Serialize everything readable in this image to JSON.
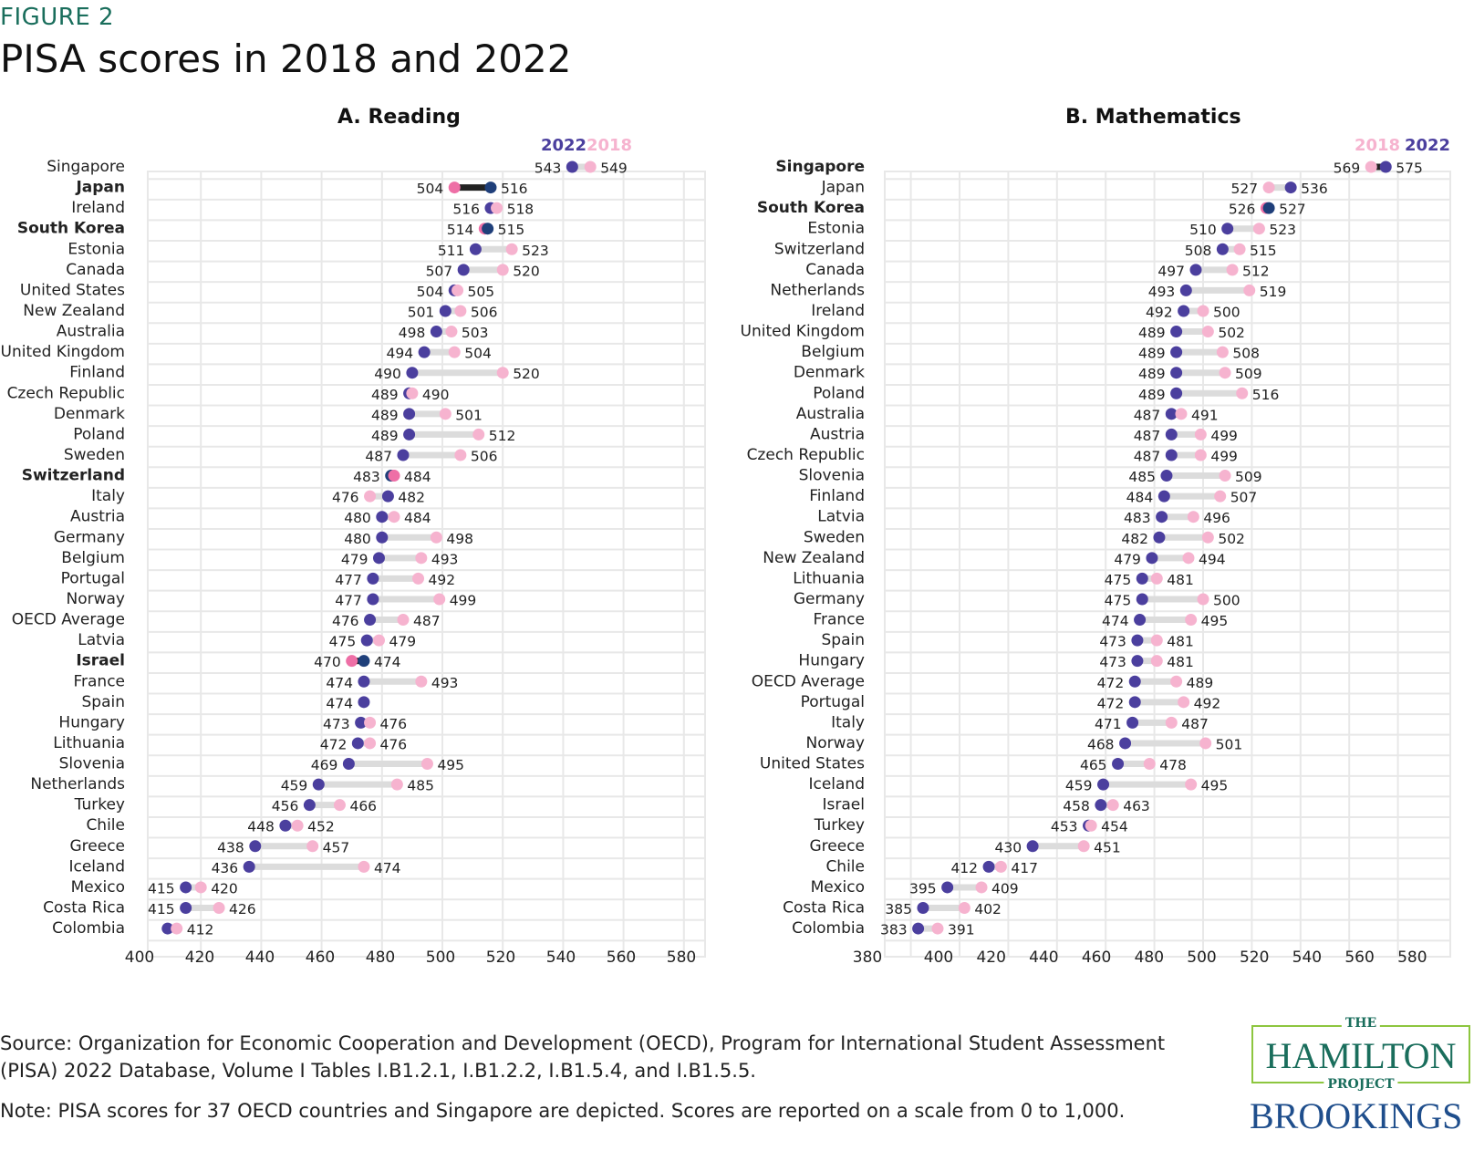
{
  "figure_label": "FIGURE 2",
  "title": "PISA scores in 2018 and 2022",
  "colors": {
    "y2022": "#4b3f9e",
    "y2018": "#f6b3cf",
    "highlight2022": "#1f3f7a",
    "highlight2018": "#ee6fa6",
    "highlight_connector": "#222222",
    "connector": "#dcdcdc",
    "grid": "#e8e8e8"
  },
  "chart_data": [
    {
      "type": "dumbbell",
      "title": "A. Reading",
      "legend": [
        "2022",
        "2018"
      ],
      "legend_placement": "top-right",
      "xlim": [
        400,
        580
      ],
      "xticks": [
        400,
        420,
        440,
        460,
        480,
        500,
        520,
        540,
        560,
        580
      ],
      "grid": true,
      "countries": [
        {
          "name": "Singapore",
          "y2022": 543,
          "y2018": 549,
          "bold": false,
          "highlight": false
        },
        {
          "name": "Japan",
          "y2022": 516,
          "y2018": 504,
          "bold": true,
          "highlight": true
        },
        {
          "name": "Ireland",
          "y2022": 516,
          "y2018": 518,
          "bold": false,
          "highlight": false
        },
        {
          "name": "South Korea",
          "y2022": 515,
          "y2018": 514,
          "bold": true,
          "highlight": true
        },
        {
          "name": "Estonia",
          "y2022": 511,
          "y2018": 523,
          "bold": false,
          "highlight": false
        },
        {
          "name": "Canada",
          "y2022": 507,
          "y2018": 520,
          "bold": false,
          "highlight": false
        },
        {
          "name": "United States",
          "y2022": 504,
          "y2018": 505,
          "bold": false,
          "highlight": false
        },
        {
          "name": "New Zealand",
          "y2022": 501,
          "y2018": 506,
          "bold": false,
          "highlight": false
        },
        {
          "name": "Australia",
          "y2022": 498,
          "y2018": 503,
          "bold": false,
          "highlight": false
        },
        {
          "name": "United Kingdom",
          "y2022": 494,
          "y2018": 504,
          "bold": false,
          "highlight": false
        },
        {
          "name": "Finland",
          "y2022": 490,
          "y2018": 520,
          "bold": false,
          "highlight": false
        },
        {
          "name": "Czech Republic",
          "y2022": 489,
          "y2018": 490,
          "bold": false,
          "highlight": false
        },
        {
          "name": "Denmark",
          "y2022": 489,
          "y2018": 501,
          "bold": false,
          "highlight": false
        },
        {
          "name": "Poland",
          "y2022": 489,
          "y2018": 512,
          "bold": false,
          "highlight": false
        },
        {
          "name": "Sweden",
          "y2022": 487,
          "y2018": 506,
          "bold": false,
          "highlight": false
        },
        {
          "name": "Switzerland",
          "y2022": 483,
          "y2018": 484,
          "bold": true,
          "highlight": true
        },
        {
          "name": "Italy",
          "y2022": 482,
          "y2018": 476,
          "bold": false,
          "highlight": false
        },
        {
          "name": "Austria",
          "y2022": 480,
          "y2018": 484,
          "bold": false,
          "highlight": false
        },
        {
          "name": "Germany",
          "y2022": 480,
          "y2018": 498,
          "bold": false,
          "highlight": false
        },
        {
          "name": "Belgium",
          "y2022": 479,
          "y2018": 493,
          "bold": false,
          "highlight": false
        },
        {
          "name": "Portugal",
          "y2022": 477,
          "y2018": 492,
          "bold": false,
          "highlight": false
        },
        {
          "name": "Norway",
          "y2022": 477,
          "y2018": 499,
          "bold": false,
          "highlight": false
        },
        {
          "name": "OECD Average",
          "y2022": 476,
          "y2018": 487,
          "bold": false,
          "highlight": false
        },
        {
          "name": "Latvia",
          "y2022": 475,
          "y2018": 479,
          "bold": false,
          "highlight": false
        },
        {
          "name": "Israel",
          "y2022": 474,
          "y2018": 470,
          "bold": true,
          "highlight": true
        },
        {
          "name": "France",
          "y2022": 474,
          "y2018": 493,
          "bold": false,
          "highlight": false
        },
        {
          "name": "Spain",
          "y2022": 474,
          "y2018": null,
          "bold": false,
          "highlight": false
        },
        {
          "name": "Hungary",
          "y2022": 473,
          "y2018": 476,
          "bold": false,
          "highlight": false
        },
        {
          "name": "Lithuania",
          "y2022": 472,
          "y2018": 476,
          "bold": false,
          "highlight": false
        },
        {
          "name": "Slovenia",
          "y2022": 469,
          "y2018": 495,
          "bold": false,
          "highlight": false
        },
        {
          "name": "Netherlands",
          "y2022": 459,
          "y2018": 485,
          "bold": false,
          "highlight": false
        },
        {
          "name": "Turkey",
          "y2022": 456,
          "y2018": 466,
          "bold": false,
          "highlight": false
        },
        {
          "name": "Chile",
          "y2022": 448,
          "y2018": 452,
          "bold": false,
          "highlight": false
        },
        {
          "name": "Greece",
          "y2022": 438,
          "y2018": 457,
          "bold": false,
          "highlight": false
        },
        {
          "name": "Iceland",
          "y2022": 436,
          "y2018": 474,
          "bold": false,
          "highlight": false
        },
        {
          "name": "Mexico",
          "y2022": 415,
          "y2018": 420,
          "bold": false,
          "highlight": false
        },
        {
          "name": "Costa Rica",
          "y2022": 415,
          "y2018": 426,
          "bold": false,
          "highlight": false
        },
        {
          "name": "Colombia",
          "y2022": 409,
          "y2018": 412,
          "bold": false,
          "highlight": false,
          "hide_2022_label": true
        }
      ]
    },
    {
      "type": "dumbbell",
      "title": "B. Mathematics",
      "legend": [
        "2018",
        "2022"
      ],
      "legend_placement": "top-right",
      "xlim": [
        380,
        580
      ],
      "xticks": [
        380,
        400,
        420,
        440,
        460,
        480,
        500,
        520,
        540,
        560,
        580
      ],
      "grid": true,
      "countries": [
        {
          "name": "Singapore",
          "y2022": 575,
          "y2018": 569,
          "bold": true,
          "highlight": true
        },
        {
          "name": "Japan",
          "y2022": 536,
          "y2018": 527,
          "bold": false,
          "highlight": false
        },
        {
          "name": "South Korea",
          "y2022": 527,
          "y2018": 526,
          "bold": true,
          "highlight": true
        },
        {
          "name": "Estonia",
          "y2022": 510,
          "y2018": 523,
          "bold": false,
          "highlight": false
        },
        {
          "name": "Switzerland",
          "y2022": 508,
          "y2018": 515,
          "bold": false,
          "highlight": false
        },
        {
          "name": "Canada",
          "y2022": 497,
          "y2018": 512,
          "bold": false,
          "highlight": false
        },
        {
          "name": "Netherlands",
          "y2022": 493,
          "y2018": 519,
          "bold": false,
          "highlight": false
        },
        {
          "name": "Ireland",
          "y2022": 492,
          "y2018": 500,
          "bold": false,
          "highlight": false
        },
        {
          "name": "United Kingdom",
          "y2022": 489,
          "y2018": 502,
          "bold": false,
          "highlight": false
        },
        {
          "name": "Belgium",
          "y2022": 489,
          "y2018": 508,
          "bold": false,
          "highlight": false
        },
        {
          "name": "Denmark",
          "y2022": 489,
          "y2018": 509,
          "bold": false,
          "highlight": false
        },
        {
          "name": "Poland",
          "y2022": 489,
          "y2018": 516,
          "bold": false,
          "highlight": false
        },
        {
          "name": "Australia",
          "y2022": 487,
          "y2018": 491,
          "bold": false,
          "highlight": false
        },
        {
          "name": "Austria",
          "y2022": 487,
          "y2018": 499,
          "bold": false,
          "highlight": false
        },
        {
          "name": "Czech Republic",
          "y2022": 487,
          "y2018": 499,
          "bold": false,
          "highlight": false
        },
        {
          "name": "Slovenia",
          "y2022": 485,
          "y2018": 509,
          "bold": false,
          "highlight": false
        },
        {
          "name": "Finland",
          "y2022": 484,
          "y2018": 507,
          "bold": false,
          "highlight": false
        },
        {
          "name": "Latvia",
          "y2022": 483,
          "y2018": 496,
          "bold": false,
          "highlight": false
        },
        {
          "name": "Sweden",
          "y2022": 482,
          "y2018": 502,
          "bold": false,
          "highlight": false
        },
        {
          "name": "New Zealand",
          "y2022": 479,
          "y2018": 494,
          "bold": false,
          "highlight": false
        },
        {
          "name": "Lithuania",
          "y2022": 475,
          "y2018": 481,
          "bold": false,
          "highlight": false
        },
        {
          "name": "Germany",
          "y2022": 475,
          "y2018": 500,
          "bold": false,
          "highlight": false
        },
        {
          "name": "France",
          "y2022": 474,
          "y2018": 495,
          "bold": false,
          "highlight": false
        },
        {
          "name": "Spain",
          "y2022": 473,
          "y2018": 481,
          "bold": false,
          "highlight": false
        },
        {
          "name": "Hungary",
          "y2022": 473,
          "y2018": 481,
          "bold": false,
          "highlight": false
        },
        {
          "name": "OECD Average",
          "y2022": 472,
          "y2018": 489,
          "bold": false,
          "highlight": false
        },
        {
          "name": "Portugal",
          "y2022": 472,
          "y2018": 492,
          "bold": false,
          "highlight": false
        },
        {
          "name": "Italy",
          "y2022": 471,
          "y2018": 487,
          "bold": false,
          "highlight": false
        },
        {
          "name": "Norway",
          "y2022": 468,
          "y2018": 501,
          "bold": false,
          "highlight": false
        },
        {
          "name": "United States",
          "y2022": 465,
          "y2018": 478,
          "bold": false,
          "highlight": false
        },
        {
          "name": "Iceland",
          "y2022": 459,
          "y2018": 495,
          "bold": false,
          "highlight": false
        },
        {
          "name": "Israel",
          "y2022": 458,
          "y2018": 463,
          "bold": false,
          "highlight": false
        },
        {
          "name": "Turkey",
          "y2022": 453,
          "y2018": 454,
          "bold": false,
          "highlight": false
        },
        {
          "name": "Greece",
          "y2022": 430,
          "y2018": 451,
          "bold": false,
          "highlight": false
        },
        {
          "name": "Chile",
          "y2022": 412,
          "y2018": 417,
          "bold": false,
          "highlight": false
        },
        {
          "name": "Mexico",
          "y2022": 395,
          "y2018": 409,
          "bold": false,
          "highlight": false
        },
        {
          "name": "Costa Rica",
          "y2022": 385,
          "y2018": 402,
          "bold": false,
          "highlight": false
        },
        {
          "name": "Colombia",
          "y2022": 383,
          "y2018": 391,
          "bold": false,
          "highlight": false
        }
      ]
    }
  ],
  "footer": {
    "source": "Source: Organization for Economic Cooperation and Development (OECD), Program for International Student Assessment (PISA) 2022 Database, Volume I Tables I.B1.2.1, I.B1.2.2, I.B1.5.4, and I.B1.5.5.",
    "note": "Note: PISA scores for 37 OECD countries and Singapore are depicted. Scores are reported on a scale from 0 to 1,000."
  },
  "logos": {
    "hamilton_the": "THE",
    "hamilton_name": "HAMILTON",
    "hamilton_project": "PROJECT",
    "brookings": "BROOKINGS"
  }
}
